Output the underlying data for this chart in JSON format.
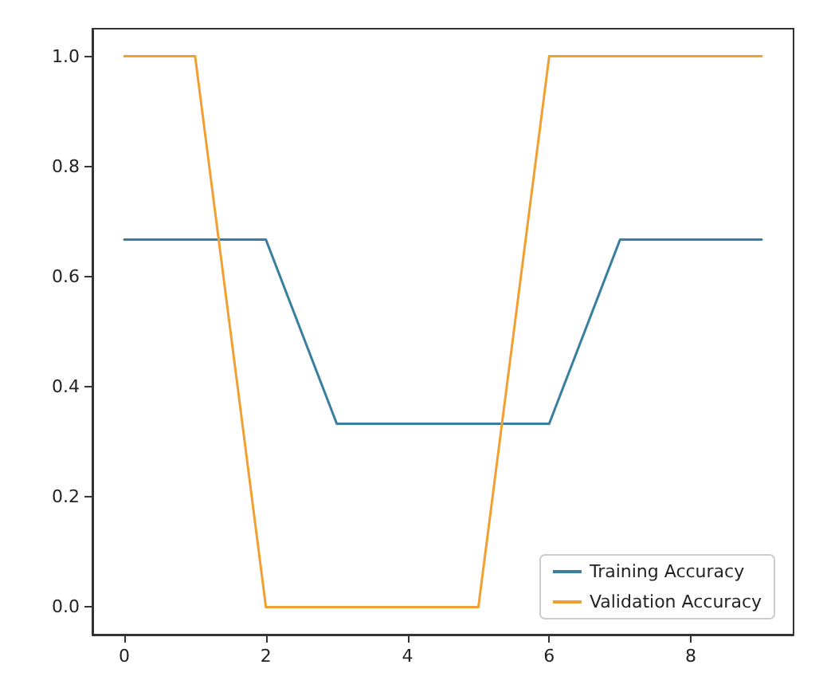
{
  "chart_data": {
    "type": "line",
    "x": [
      0,
      1,
      2,
      3,
      4,
      5,
      6,
      7,
      8,
      9
    ],
    "series": [
      {
        "name": "Training Accuracy",
        "color": "#3a7fa0",
        "values": [
          0.667,
          0.667,
          0.667,
          0.333,
          0.333,
          0.333,
          0.333,
          0.667,
          0.667,
          0.667
        ]
      },
      {
        "name": "Validation Accuracy",
        "color": "#f0a030",
        "values": [
          1,
          1,
          0,
          0,
          0,
          0,
          1,
          1,
          1,
          1
        ]
      }
    ],
    "xlim": [
      -0.45,
      9.45
    ],
    "xticks": [
      0,
      2,
      4,
      6,
      8
    ],
    "ylim": [
      -0.05,
      1.05
    ],
    "yticks": [
      {
        "value": 0,
        "label": "0.0"
      },
      {
        "value": 0.2,
        "label": "0.2"
      },
      {
        "value": 0.4,
        "label": "0.4"
      },
      {
        "value": 0.6,
        "label": "0.6"
      },
      {
        "value": 0.8,
        "label": "0.8"
      },
      {
        "value": 1,
        "label": "1.0"
      }
    ],
    "grid": false,
    "legend": "bottom right",
    "marker": "none",
    "line_style": "solid"
  }
}
